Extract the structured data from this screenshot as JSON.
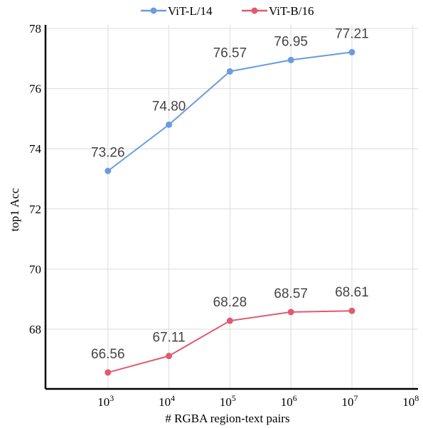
{
  "chart_data": {
    "type": "line",
    "title": "",
    "xlabel": "# RGBA region-text pairs",
    "ylabel": "top1 Acc",
    "x_scale": "log",
    "x_ticks": [
      1000,
      10000,
      100000,
      1000000,
      10000000,
      100000000
    ],
    "x_tick_labels": [
      {
        "base": "10",
        "exp": "3"
      },
      {
        "base": "10",
        "exp": "4"
      },
      {
        "base": "10",
        "exp": "5"
      },
      {
        "base": "10",
        "exp": "6"
      },
      {
        "base": "10",
        "exp": "7"
      },
      {
        "base": "10",
        "exp": "8"
      }
    ],
    "xlim": [
      100,
      100000000
    ],
    "ylim": [
      66,
      78
    ],
    "y_ticks": [
      68,
      70,
      72,
      74,
      76,
      78
    ],
    "y_tick_labels": [
      "68",
      "70",
      "72",
      "74",
      "76",
      "78"
    ],
    "grid": true,
    "legend_position": "top",
    "x": [
      1000,
      10000,
      100000,
      1000000,
      10000000
    ],
    "series": [
      {
        "name": "ViT-L/14",
        "color": "#6a9be0",
        "values": [
          73.26,
          74.8,
          76.57,
          76.95,
          77.21
        ],
        "labels": [
          "73.26",
          "74.80",
          "76.57",
          "76.95",
          "77.21"
        ]
      },
      {
        "name": "ViT-B/16",
        "color": "#e05a70",
        "values": [
          66.56,
          67.11,
          68.28,
          68.57,
          68.61
        ],
        "labels": [
          "66.56",
          "67.11",
          "68.28",
          "68.57",
          "68.61"
        ]
      }
    ]
  }
}
